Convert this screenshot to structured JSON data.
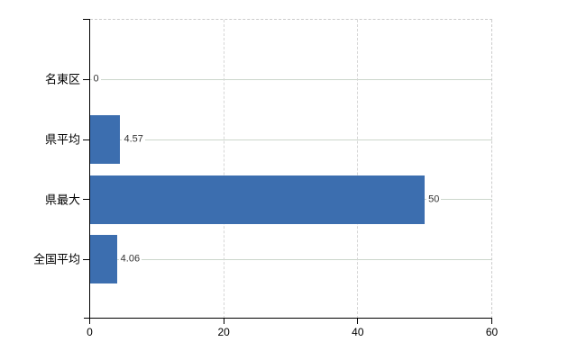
{
  "chart_data": {
    "type": "bar",
    "orientation": "horizontal",
    "title": "",
    "categories": [
      "名東区",
      "県平均",
      "県最大",
      "全国平均"
    ],
    "values": [
      0,
      4.57,
      50,
      4.06
    ],
    "value_labels": [
      "0",
      "4.57",
      "50",
      "4.06"
    ],
    "xlim": [
      0,
      60
    ],
    "xticks": [
      0,
      20,
      40,
      60
    ],
    "xtick_labels": [
      "0",
      "20",
      "40",
      "60"
    ],
    "legend": "none",
    "grid": {
      "horizontal_row_lines": true,
      "vertical_tick_lines": true,
      "top_border_dashed": true,
      "right_border_dashed": true
    },
    "colors": {
      "bar": "#3c6eaf",
      "h_gridline": "#ccd6cb",
      "v_gridline": "#d6d6d6",
      "dashed_border": "#cccccc",
      "axis": "#000000",
      "value_text": "#333333",
      "category_text": "#000000",
      "background": "#ffffff"
    }
  }
}
